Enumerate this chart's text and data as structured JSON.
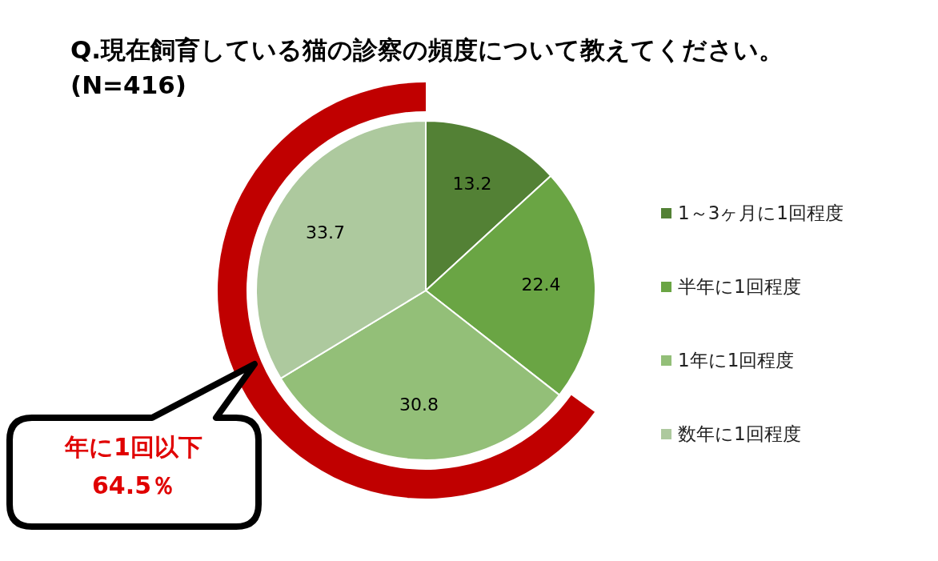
{
  "chart_data": {
    "type": "pie",
    "title": "Q.現在飼育している猫の診察の頻度について教えてください。",
    "subtitle": "(N=416)",
    "categories": [
      "1～3ヶ月に1回程度",
      "半年に1回程度",
      "1年に1回程度",
      "数年に1回程度"
    ],
    "values": [
      13.2,
      22.4,
      30.8,
      33.7
    ],
    "colors": [
      "#538135",
      "#6aa544",
      "#93bf78",
      "#adc99e"
    ],
    "data_labels": true,
    "legend": "right",
    "annotations": [
      "年に1回以下\n64.5％"
    ]
  }
}
